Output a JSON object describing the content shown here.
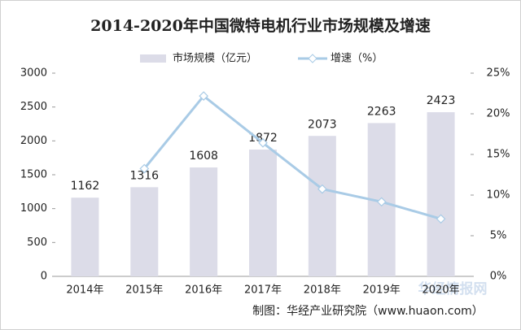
{
  "chart_data": {
    "type": "bar_line",
    "title": "2014-2020年中国微特电机行业市场规模及增速",
    "categories": [
      "2014年",
      "2015年",
      "2016年",
      "2017年",
      "2018年",
      "2019年",
      "2020年"
    ],
    "series": [
      {
        "name": "市场规模（亿元）",
        "type": "bar",
        "color": "#dcdce8",
        "values": [
          1162,
          1316,
          1608,
          1872,
          2073,
          2263,
          2423
        ]
      },
      {
        "name": "增速（%）",
        "type": "line",
        "axis": "y2",
        "color": "#a9cbe6",
        "values": [
          null,
          13.25,
          22.19,
          16.42,
          10.74,
          9.17,
          7.07
        ]
      }
    ],
    "ylim": [
      0,
      3000
    ],
    "yticks": [
      0,
      500,
      1000,
      1500,
      2000,
      2500,
      3000
    ],
    "y2lim": [
      0,
      25
    ],
    "y2ticks": [
      {
        "value": 0,
        "label": "0%"
      },
      {
        "value": 5,
        "label": "5%"
      },
      {
        "value": 10,
        "label": "10%"
      },
      {
        "value": 15,
        "label": "15%"
      },
      {
        "value": 20,
        "label": "20%"
      },
      {
        "value": 25,
        "label": "25%"
      }
    ],
    "legend": "top",
    "source": "制图：华经产业研究院（www.huaon.com）",
    "watermark": "华经情报网"
  }
}
